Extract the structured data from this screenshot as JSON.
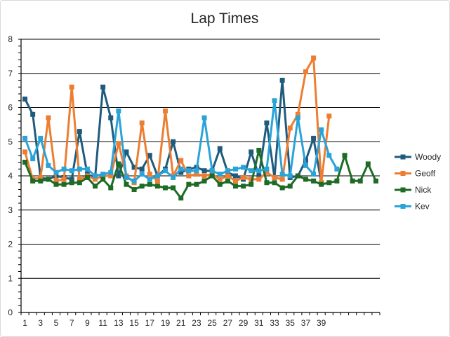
{
  "chart_data": {
    "type": "line",
    "title": "Lap Times",
    "xlabel": "",
    "ylabel": "",
    "ylim": [
      0,
      8
    ],
    "y_ticks": [
      "0",
      "1",
      "2",
      "3",
      "4",
      "5",
      "6",
      "7",
      "8"
    ],
    "x_tick_labels": [
      "1",
      "3",
      "5",
      "7",
      "9",
      "11",
      "13",
      "15",
      "17",
      "19",
      "21",
      "23",
      "25",
      "27",
      "29",
      "31",
      "33",
      "35",
      "37",
      "39"
    ],
    "x_count": 46,
    "grid": "horizontal",
    "legend_position": "right",
    "series": [
      {
        "name": "Woody",
        "color": "#1f5b7d",
        "values": [
          6.25,
          5.8,
          3.95,
          3.9,
          4.0,
          3.95,
          3.9,
          5.3,
          4.05,
          3.95,
          6.6,
          5.7,
          4.0,
          4.7,
          4.25,
          4.2,
          4.6,
          4.0,
          4.2,
          5.0,
          4.1,
          4.2,
          4.25,
          4.15,
          4.15,
          4.8,
          4.1,
          4.0,
          3.9,
          4.7,
          4.0,
          5.55,
          3.95,
          6.8,
          3.95,
          4.0,
          4.45,
          5.1,
          3.8
        ]
      },
      {
        "name": "Geoff",
        "color": "#ed7d31",
        "values": [
          4.7,
          3.9,
          3.95,
          5.7,
          3.85,
          3.9,
          6.6,
          3.9,
          4.0,
          3.9,
          4.0,
          4.0,
          4.95,
          4.0,
          3.8,
          5.55,
          4.05,
          3.85,
          5.9,
          4.0,
          4.45,
          4.0,
          4.05,
          4.0,
          4.05,
          3.9,
          4.0,
          3.85,
          3.95,
          3.9,
          3.9,
          4.1,
          3.95,
          3.9,
          5.4,
          5.8,
          7.05,
          7.45,
          3.8,
          5.75
        ]
      },
      {
        "name": "Nick",
        "color": "#1e6b25",
        "values": [
          4.4,
          3.85,
          3.85,
          3.9,
          3.75,
          3.75,
          3.8,
          3.8,
          3.95,
          3.7,
          3.9,
          3.65,
          4.35,
          3.75,
          3.6,
          3.7,
          3.75,
          3.7,
          3.65,
          3.65,
          3.35,
          3.75,
          3.75,
          3.85,
          4.0,
          3.75,
          3.85,
          3.7,
          3.7,
          3.75,
          4.75,
          3.8,
          3.8,
          3.65,
          3.7,
          4.0,
          3.9,
          3.85,
          3.75,
          3.8,
          3.85,
          4.6,
          3.85,
          3.85,
          4.35,
          3.85
        ]
      },
      {
        "name": "Kev",
        "color": "#2aa3d9",
        "values": [
          5.1,
          4.5,
          5.1,
          4.3,
          4.1,
          4.2,
          4.15,
          4.2,
          4.2,
          4.0,
          4.05,
          4.1,
          5.9,
          3.95,
          3.85,
          4.05,
          3.9,
          4.0,
          4.15,
          3.95,
          4.2,
          4.15,
          4.15,
          5.7,
          4.15,
          4.05,
          4.15,
          4.2,
          4.25,
          4.15,
          4.15,
          4.2,
          6.2,
          4.05,
          4.0,
          5.7,
          4.3,
          4.05,
          5.35,
          4.6,
          4.2
        ]
      }
    ]
  }
}
